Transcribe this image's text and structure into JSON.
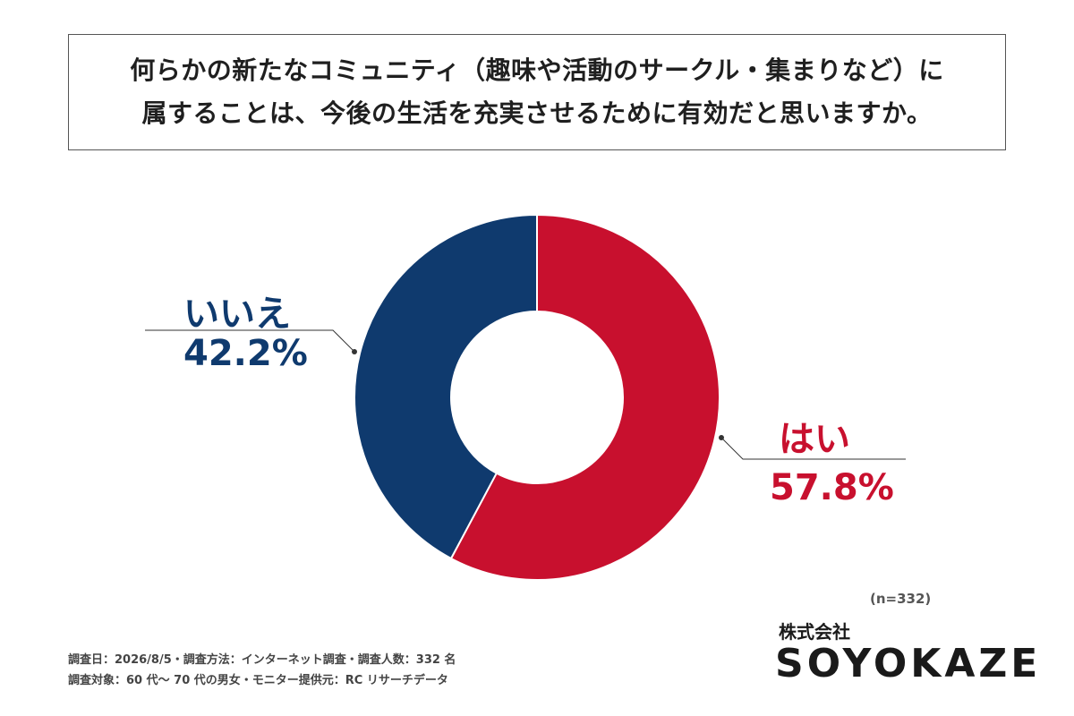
{
  "question": {
    "line1": "何らかの新たなコミュニティ（趣味や活動のサークル・集まりなど）に",
    "line2": "属することは、今後の生活を充実させるために有効だと思いますか。"
  },
  "chart_data": {
    "type": "pie",
    "donut": true,
    "slices": [
      {
        "label": "はい",
        "value": 57.8,
        "display": "57.8%",
        "color": "#c8102e"
      },
      {
        "label": "いいえ",
        "value": 42.2,
        "display": "42.2%",
        "color": "#0f3a6e"
      }
    ],
    "sample_size": "(n=332)"
  },
  "footer": {
    "line1": "調査日：2026/8/5・調査方法：インターネット調査・調査人数：332 名",
    "line2": "調査対象：60 代～ 70 代の男女・モニター提供元：RC リサーチデータ"
  },
  "brand": {
    "sub": "株式会社",
    "name": "SOYOKAZE"
  }
}
